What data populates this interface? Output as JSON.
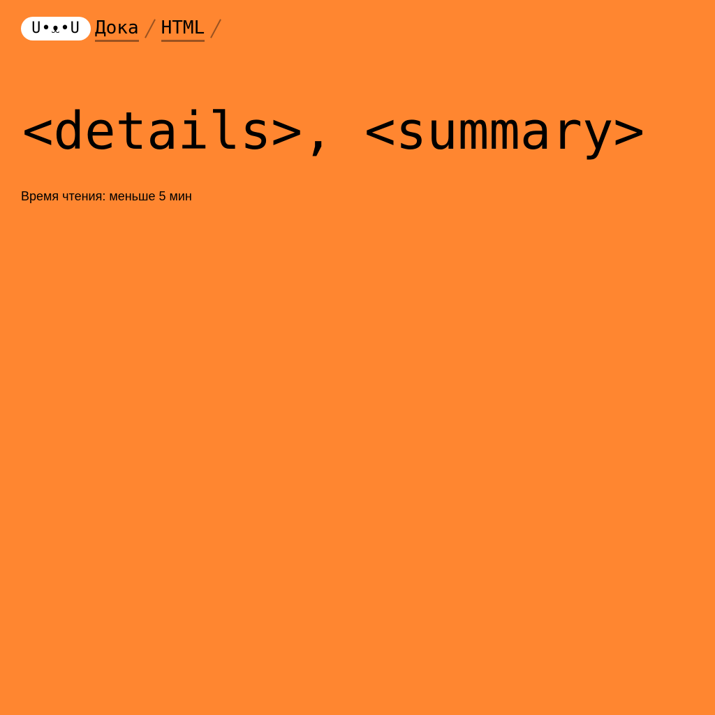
{
  "header": {
    "logo_text": "U•ᴥ•U",
    "breadcrumbs": [
      {
        "label": "Дока"
      },
      {
        "label": "HTML"
      }
    ]
  },
  "article": {
    "title": "<details>, <summary>",
    "reading_time": "Время чтения: меньше 5 мин"
  },
  "colors": {
    "background": "#ff8630",
    "text": "#000000",
    "logo_background": "#ffffff",
    "breadcrumb_underline": "#9a5220"
  }
}
